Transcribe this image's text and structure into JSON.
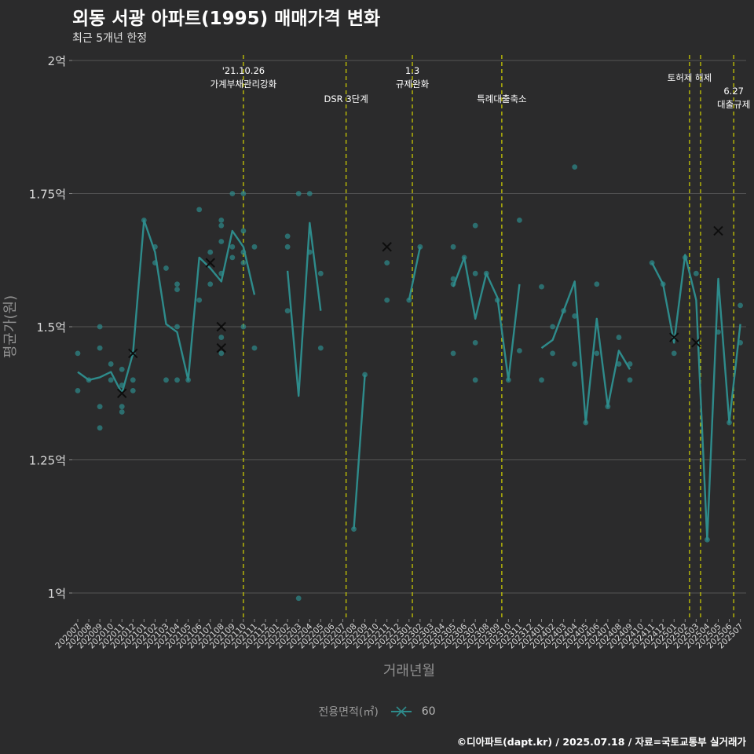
{
  "title": "외동 서광 아파트(1995) 매매가격 변화",
  "subtitle": "최근 5개년 한정",
  "caption": "©디아파트(dapt.kr) / 2025.07.18 / 자료=국토교통부 실거래가",
  "colors": {
    "background": "#2b2b2c",
    "series": "#2e8b8b",
    "vline": "#d4d400",
    "grid": "#555555"
  },
  "legend": {
    "title": "전용면적(㎡)",
    "label": "60"
  },
  "chart_data": {
    "type": "line",
    "title": "외동 서광 아파트(1995) 매매가격 변화",
    "xlabel": "거래년월",
    "ylabel": "평균가(원)",
    "ylim": [
      0.9,
      2.0
    ],
    "yticks": [
      {
        "value": 1.0,
        "label": "1억"
      },
      {
        "value": 1.25,
        "label": "1.25억"
      },
      {
        "value": 1.5,
        "label": "1.5억"
      },
      {
        "value": 1.75,
        "label": "1.75억"
      },
      {
        "value": 2.0,
        "label": "2억"
      }
    ],
    "x": [
      "202007",
      "202008",
      "202009",
      "202010",
      "202011",
      "202012",
      "202101",
      "202102",
      "202103",
      "202104",
      "202105",
      "202106",
      "202107",
      "202108",
      "202109",
      "202110",
      "202111",
      "202112",
      "202201",
      "202202",
      "202203",
      "202204",
      "202205",
      "202206",
      "202207",
      "202208",
      "202209",
      "202210",
      "202211",
      "202212",
      "202301",
      "202302",
      "202303",
      "202304",
      "202305",
      "202306",
      "202307",
      "202308",
      "202309",
      "202310",
      "202311",
      "202312",
      "202401",
      "202402",
      "202403",
      "202404",
      "202405",
      "202406",
      "202407",
      "202408",
      "202409",
      "202410",
      "202411",
      "202412",
      "202501",
      "202502",
      "202503",
      "202504",
      "202505",
      "202506",
      "202507"
    ],
    "series": [
      {
        "name": "60",
        "line": [
          1.415,
          1.4,
          1.405,
          1.415,
          1.375,
          1.45,
          1.7,
          1.64,
          1.505,
          1.49,
          1.4,
          1.63,
          1.61,
          1.585,
          1.68,
          1.65,
          1.56,
          null,
          null,
          1.605,
          1.37,
          1.695,
          1.53,
          null,
          null,
          1.12,
          1.41,
          null,
          1.65,
          null,
          1.55,
          1.65,
          null,
          null,
          1.575,
          1.63,
          1.515,
          1.6,
          1.555,
          1.4,
          1.58,
          null,
          1.46,
          1.475,
          1.53,
          1.585,
          1.32,
          1.515,
          1.35,
          1.455,
          1.42,
          null,
          1.62,
          1.58,
          1.47,
          1.635,
          1.55,
          1.1,
          1.59,
          1.32,
          1.505
        ],
        "points": [
          [
            0,
            1.45
          ],
          [
            0,
            1.38
          ],
          [
            1,
            1.4
          ],
          [
            2,
            1.5
          ],
          [
            2,
            1.46
          ],
          [
            2,
            1.35
          ],
          [
            2,
            1.31
          ],
          [
            3,
            1.43
          ],
          [
            3,
            1.4
          ],
          [
            4,
            1.42
          ],
          [
            4,
            1.39
          ],
          [
            4,
            1.35
          ],
          [
            4,
            1.34
          ],
          [
            5,
            1.45
          ],
          [
            5,
            1.4
          ],
          [
            5,
            1.38
          ],
          [
            6,
            1.7
          ],
          [
            7,
            1.65
          ],
          [
            7,
            1.62
          ],
          [
            8,
            1.61
          ],
          [
            8,
            1.4
          ],
          [
            9,
            1.58
          ],
          [
            9,
            1.57
          ],
          [
            9,
            1.5
          ],
          [
            9,
            1.4
          ],
          [
            10,
            1.4
          ],
          [
            11,
            1.72
          ],
          [
            11,
            1.55
          ],
          [
            12,
            1.64
          ],
          [
            12,
            1.58
          ],
          [
            13,
            1.7
          ],
          [
            13,
            1.69
          ],
          [
            13,
            1.66
          ],
          [
            13,
            1.6
          ],
          [
            13,
            1.48
          ],
          [
            13,
            1.45
          ],
          [
            14,
            1.75
          ],
          [
            14,
            1.65
          ],
          [
            14,
            1.63
          ],
          [
            15,
            1.75
          ],
          [
            15,
            1.68
          ],
          [
            15,
            1.64
          ],
          [
            15,
            1.62
          ],
          [
            15,
            1.5
          ],
          [
            16,
            1.65
          ],
          [
            16,
            1.46
          ],
          [
            19,
            1.67
          ],
          [
            19,
            1.65
          ],
          [
            19,
            1.53
          ],
          [
            20,
            1.75
          ],
          [
            20,
            0.99
          ],
          [
            21,
            1.75
          ],
          [
            21,
            1.64
          ],
          [
            22,
            1.6
          ],
          [
            22,
            1.46
          ],
          [
            25,
            1.12
          ],
          [
            26,
            1.41
          ],
          [
            28,
            1.62
          ],
          [
            28,
            1.55
          ],
          [
            30,
            1.55
          ],
          [
            31,
            1.65
          ],
          [
            34,
            1.65
          ],
          [
            34,
            1.59
          ],
          [
            34,
            1.58
          ],
          [
            34,
            1.45
          ],
          [
            35,
            1.63
          ],
          [
            36,
            1.69
          ],
          [
            36,
            1.6
          ],
          [
            36,
            1.47
          ],
          [
            36,
            1.4
          ],
          [
            37,
            1.6
          ],
          [
            38,
            1.55
          ],
          [
            39,
            1.4
          ],
          [
            40,
            1.7
          ],
          [
            40,
            1.455
          ],
          [
            42,
            1.575
          ],
          [
            42,
            1.4
          ],
          [
            43,
            1.5
          ],
          [
            43,
            1.45
          ],
          [
            44,
            1.53
          ],
          [
            45,
            1.8
          ],
          [
            45,
            1.52
          ],
          [
            45,
            1.43
          ],
          [
            46,
            1.32
          ],
          [
            47,
            1.58
          ],
          [
            47,
            1.45
          ],
          [
            48,
            1.35
          ],
          [
            49,
            1.48
          ],
          [
            49,
            1.43
          ],
          [
            50,
            1.43
          ],
          [
            50,
            1.4
          ],
          [
            52,
            1.62
          ],
          [
            53,
            1.58
          ],
          [
            54,
            1.45
          ],
          [
            55,
            1.63
          ],
          [
            56,
            1.6
          ],
          [
            57,
            1.1
          ],
          [
            58,
            1.49
          ],
          [
            59,
            1.32
          ],
          [
            60,
            1.54
          ],
          [
            60,
            1.47
          ]
        ],
        "crosses": [
          [
            5,
            1.45
          ],
          [
            4,
            1.375
          ],
          [
            12,
            1.62
          ],
          [
            13,
            1.5
          ],
          [
            13,
            1.46
          ],
          [
            28,
            1.65
          ],
          [
            54,
            1.48
          ],
          [
            56,
            1.47
          ],
          [
            58,
            1.68
          ]
        ]
      }
    ],
    "vlines": [
      {
        "x": 15,
        "lines": [
          "'21.10.26",
          "가계부채관리강화"
        ],
        "row": 0
      },
      {
        "x": 24.3,
        "lines": [
          "DSR 3단계"
        ],
        "row": 1
      },
      {
        "x": 30.3,
        "lines": [
          "1.3",
          "규제완화"
        ],
        "row": 0
      },
      {
        "x": 38.4,
        "lines": [
          "특례대출축소"
        ],
        "row": 1
      },
      {
        "x": 55.4,
        "lines": [
          "토허제 해제"
        ],
        "row": 0.5
      },
      {
        "x": 56.4,
        "lines": [],
        "row": 0
      },
      {
        "x": 59.4,
        "lines": [
          "6.27",
          "대출규제"
        ],
        "row": 1
      }
    ]
  }
}
